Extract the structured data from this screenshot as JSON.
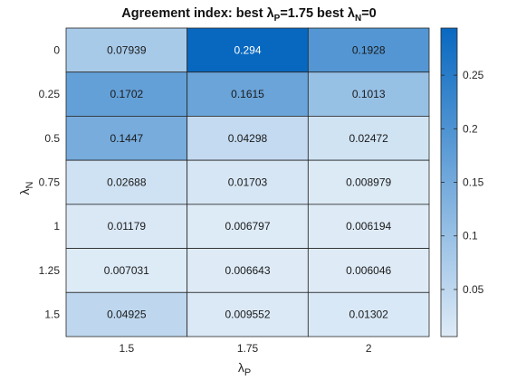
{
  "chart_data": {
    "type": "heatmap",
    "title": {
      "prefix": "Agreement index: best ",
      "p_symbol": "λ",
      "p_sub": "P",
      "p_value": "=1.75 best  ",
      "n_symbol": "λ",
      "n_sub": "N",
      "n_value": "=0"
    },
    "xlabel": {
      "symbol": "λ",
      "sub": "P"
    },
    "ylabel": {
      "symbol": "λ",
      "sub": "N"
    },
    "x_categories": [
      "1.5",
      "1.75",
      "2"
    ],
    "y_categories": [
      "0",
      "0.25",
      "0.5",
      "0.75",
      "1",
      "1.25",
      "1.5"
    ],
    "cell_labels": [
      [
        "0.07939",
        "0.294",
        "0.1928"
      ],
      [
        "0.1702",
        "0.1615",
        "0.1013"
      ],
      [
        "0.1447",
        "0.04298",
        "0.02472"
      ],
      [
        "0.02688",
        "0.01703",
        "0.008979"
      ],
      [
        "0.01179",
        "0.006797",
        "0.006194"
      ],
      [
        "0.007031",
        "0.006643",
        "0.006046"
      ],
      [
        "0.04925",
        "0.009552",
        "0.01302"
      ]
    ],
    "colorbar": {
      "ticks": [
        "0.05",
        "0.1",
        "0.15",
        "0.2",
        "0.25"
      ],
      "range": [
        0.006046,
        0.294
      ],
      "color_low": "#deebf7",
      "color_high": "#0868c0"
    },
    "grid": false,
    "colorbar_position": "right"
  }
}
